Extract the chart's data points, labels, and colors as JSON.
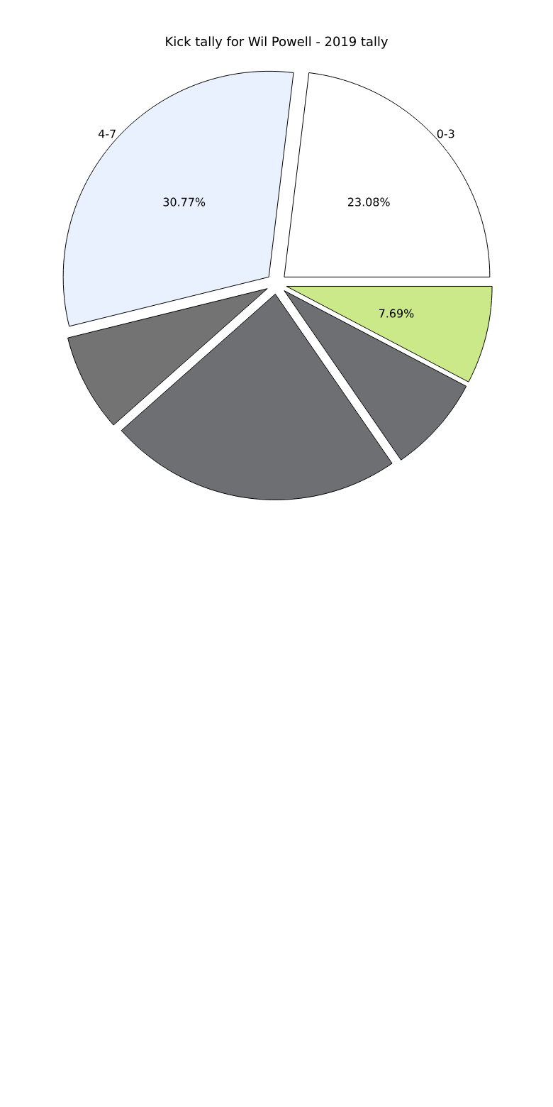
{
  "chart_data": {
    "type": "pie",
    "title": "Kick tally for Wil Powell - 2019 tally",
    "categories": [
      "0-3",
      "4-7",
      null,
      null,
      null,
      null
    ],
    "values": [
      23.08,
      30.77,
      7.69,
      23.08,
      7.69,
      7.69
    ],
    "colors": [
      "#ffffff",
      "#eaf1fe",
      "#737373",
      "#6d6f73",
      "#6d6f73",
      "#cce98a"
    ],
    "value_labels": [
      "23.08%",
      "30.77%",
      null,
      null,
      null,
      "7.69%"
    ]
  }
}
